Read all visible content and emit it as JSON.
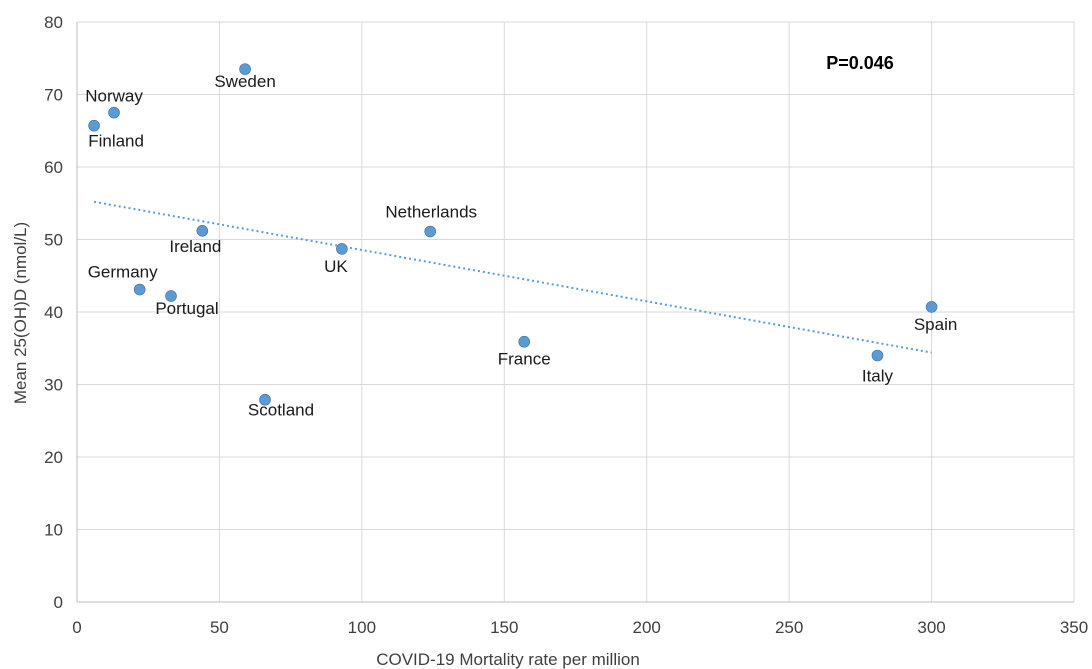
{
  "chart_data": {
    "type": "scatter",
    "xlabel": "COVID-19 Mortality rate per million",
    "ylabel": "Mean 25(OH)D (nmol/L)",
    "xlim": [
      0,
      350
    ],
    "ylim": [
      0,
      80
    ],
    "x_ticks": [
      0,
      50,
      100,
      150,
      200,
      250,
      300,
      350
    ],
    "y_ticks": [
      0,
      10,
      20,
      30,
      40,
      50,
      60,
      70,
      80
    ],
    "grid": true,
    "point_color": "#5b9bd5",
    "points": [
      {
        "label": "Norway",
        "x": 13,
        "y": 67.5
      },
      {
        "label": "Finland",
        "x": 6,
        "y": 65.7
      },
      {
        "label": "Sweden",
        "x": 59,
        "y": 73.5
      },
      {
        "label": "Ireland",
        "x": 44,
        "y": 51.2
      },
      {
        "label": "Germany",
        "x": 22,
        "y": 43.1
      },
      {
        "label": "Portugal",
        "x": 33,
        "y": 42.2
      },
      {
        "label": "UK",
        "x": 93,
        "y": 48.7
      },
      {
        "label": "Netherlands",
        "x": 124,
        "y": 51.1
      },
      {
        "label": "France",
        "x": 157,
        "y": 35.9
      },
      {
        "label": "Scotland",
        "x": 66,
        "y": 27.9
      },
      {
        "label": "Italy",
        "x": 281,
        "y": 34.0
      },
      {
        "label": "Spain",
        "x": 300,
        "y": 40.7
      }
    ],
    "trendline": {
      "style": "dotted",
      "color": "#5b9bd5",
      "x": [
        6,
        300
      ],
      "y": [
        55.2,
        34.4
      ]
    },
    "annotations": [
      "P=0.046"
    ]
  }
}
